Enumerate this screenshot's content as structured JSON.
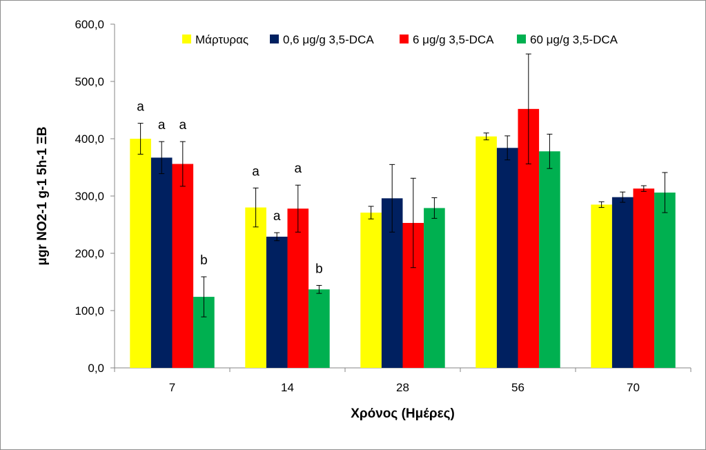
{
  "chart_data": {
    "type": "bar",
    "title": "",
    "xlabel": "Χρόνος (Ημέρες)",
    "ylabel": "μgr NO2-1 g-1 5h-1 ΞΒ",
    "ylim": [
      0,
      600
    ],
    "yticks": [
      "0,0",
      "100,0",
      "200,0",
      "300,0",
      "400,0",
      "500,0",
      "600,0"
    ],
    "categories": [
      "7",
      "14",
      "28",
      "56",
      "70"
    ],
    "legend_position": "top",
    "series": [
      {
        "name": "Μάρτυρας",
        "color": "#ffff00",
        "values": [
          400,
          280,
          271,
          404,
          285
        ],
        "errors": [
          27,
          34,
          11,
          6,
          5
        ],
        "labels": [
          "a",
          "a",
          "",
          "",
          ""
        ]
      },
      {
        "name": "0,6 μg/g 3,5-DCA",
        "color": "#002060",
        "values": [
          367,
          229,
          296,
          384,
          298
        ],
        "errors": [
          28,
          7,
          59,
          21,
          9
        ],
        "labels": [
          "a",
          "a",
          "",
          "",
          ""
        ]
      },
      {
        "name": "6 μg/g 3,5-DCA",
        "color": "#ff0000",
        "values": [
          356,
          278,
          253,
          452,
          313
        ],
        "errors": [
          39,
          41,
          78,
          96,
          5
        ],
        "labels": [
          "a",
          "a",
          "",
          "",
          ""
        ]
      },
      {
        "name": "60 μg/g 3,5-DCA",
        "color": "#00b050",
        "values": [
          124,
          137,
          279,
          378,
          306
        ],
        "errors": [
          35,
          7,
          18,
          30,
          35
        ],
        "labels": [
          "b",
          "b",
          "",
          "",
          ""
        ]
      }
    ]
  }
}
